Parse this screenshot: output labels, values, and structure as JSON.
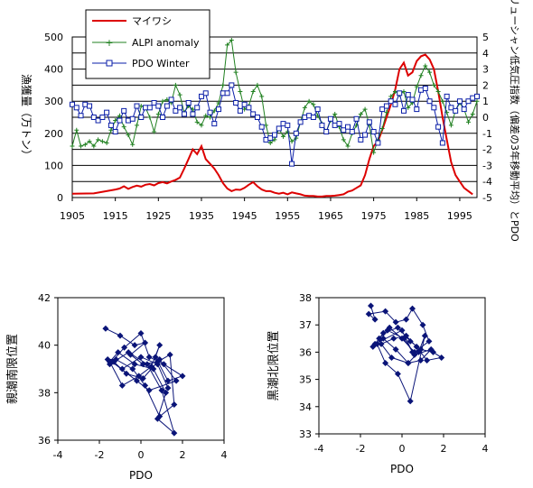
{
  "colors": {
    "sardine": "#dd0000",
    "alpi": "#208020",
    "pdo": "#0a1ea8",
    "scatter": "#0a1478",
    "grid": "#000000"
  },
  "chart_data": [
    {
      "type": "line",
      "legend_position": "top-left",
      "grid": true,
      "xlim": [
        1905,
        1999
      ],
      "xticks": [
        "1905",
        "1915",
        "1925",
        "1935",
        "1945",
        "1955",
        "1965",
        "1975",
        "1985",
        "1995"
      ],
      "ylim": [
        0,
        500
      ],
      "yticks": [
        "0",
        "100",
        "200",
        "300",
        "400",
        "500"
      ],
      "y2lim": [
        -5,
        5
      ],
      "y2ticks": [
        "-5",
        "-4",
        "-3",
        "-2",
        "-1",
        "0",
        "1",
        "2",
        "3",
        "4",
        "5"
      ],
      "ylabel": "漁獲量（万トン）",
      "y2label": "アリューシャン低気圧指数（偏差の3年移動平均）とPDO",
      "series": [
        {
          "name": "マイワシ",
          "axis": "left",
          "x": [
            1905,
            1910,
            1915,
            1916,
            1917,
            1918,
            1919,
            1920,
            1921,
            1922,
            1923,
            1924,
            1925,
            1926,
            1927,
            1928,
            1929,
            1930,
            1931,
            1932,
            1933,
            1934,
            1935,
            1936,
            1937,
            1938,
            1939,
            1940,
            1941,
            1942,
            1943,
            1944,
            1945,
            1946,
            1947,
            1948,
            1949,
            1950,
            1951,
            1952,
            1953,
            1954,
            1955,
            1956,
            1957,
            1958,
            1959,
            1960,
            1961,
            1962,
            1963,
            1964,
            1965,
            1966,
            1967,
            1968,
            1969,
            1970,
            1971,
            1972,
            1973,
            1974,
            1975,
            1976,
            1977,
            1978,
            1979,
            1980,
            1981,
            1982,
            1983,
            1984,
            1985,
            1986,
            1987,
            1988,
            1989,
            1990,
            1991,
            1992,
            1993,
            1994,
            1995,
            1996,
            1997,
            1998
          ],
          "values": [
            12,
            13,
            25,
            28,
            35,
            27,
            33,
            37,
            34,
            40,
            42,
            38,
            45,
            48,
            44,
            50,
            55,
            62,
            90,
            120,
            150,
            135,
            160,
            120,
            105,
            90,
            70,
            45,
            28,
            20,
            25,
            24,
            30,
            40,
            48,
            35,
            25,
            20,
            20,
            15,
            12,
            15,
            10,
            16,
            13,
            10,
            6,
            5,
            5,
            3,
            3,
            5,
            5,
            6,
            8,
            10,
            18,
            22,
            30,
            38,
            70,
            120,
            160,
            175,
            210,
            250,
            290,
            335,
            400,
            420,
            380,
            390,
            425,
            440,
            445,
            430,
            400,
            330,
            250,
            180,
            110,
            70,
            50,
            30,
            20,
            10
          ]
        },
        {
          "name": "ALPI anomaly",
          "axis": "right",
          "x": [
            1905,
            1906,
            1907,
            1908,
            1909,
            1910,
            1911,
            1912,
            1913,
            1914,
            1915,
            1916,
            1917,
            1918,
            1919,
            1920,
            1921,
            1922,
            1923,
            1924,
            1925,
            1926,
            1927,
            1928,
            1929,
            1930,
            1931,
            1932,
            1933,
            1934,
            1935,
            1936,
            1937,
            1938,
            1939,
            1940,
            1941,
            1942,
            1943,
            1944,
            1945,
            1946,
            1947,
            1948,
            1949,
            1950,
            1951,
            1952,
            1953,
            1954,
            1955,
            1956,
            1957,
            1958,
            1959,
            1960,
            1961,
            1962,
            1963,
            1964,
            1965,
            1966,
            1967,
            1968,
            1969,
            1970,
            1971,
            1972,
            1973,
            1974,
            1975,
            1976,
            1977,
            1978,
            1979,
            1980,
            1981,
            1982,
            1983,
            1984,
            1985,
            1986,
            1987,
            1988,
            1989,
            1990,
            1991,
            1992,
            1993,
            1994,
            1995,
            1996,
            1997,
            1998,
            1999
          ],
          "values": [
            -1.8,
            -0.8,
            -1.8,
            -1.7,
            -1.5,
            -1.8,
            -1.4,
            -1.5,
            -1.6,
            -0.8,
            -0.2,
            0.1,
            -0.6,
            -1.1,
            -1.7,
            -0.5,
            0.7,
            0.6,
            0.0,
            -0.9,
            0.2,
            1.0,
            1.1,
            0.9,
            2.0,
            1.4,
            0.3,
            0.7,
            0.5,
            -0.3,
            -0.5,
            0.1,
            0.0,
            0.4,
            0.9,
            2.0,
            4.5,
            4.8,
            2.8,
            1.6,
            0.5,
            0.7,
            1.6,
            2.0,
            1.3,
            -0.5,
            -1.6,
            -1.4,
            -0.7,
            -1.2,
            -0.9,
            -1.5,
            -1.3,
            -0.3,
            0.6,
            1.0,
            0.8,
            0.1,
            -0.4,
            -0.9,
            -0.2,
            0.2,
            -0.6,
            -1.4,
            -1.8,
            -1.0,
            -0.5,
            0.2,
            0.5,
            -0.5,
            -2.2,
            -1.4,
            -0.7,
            0.3,
            1.3,
            1.6,
            1.4,
            1.6,
            0.6,
            0.9,
            1.9,
            2.6,
            3.2,
            2.8,
            2.0,
            1.6,
            1.0,
            0.3,
            -0.5,
            0.4,
            0.9,
            0.5,
            -0.3,
            0.2,
            1.0
          ]
        },
        {
          "name": "PDO Winter",
          "axis": "right",
          "x": [
            1905,
            1906,
            1907,
            1908,
            1909,
            1910,
            1911,
            1912,
            1913,
            1914,
            1915,
            1916,
            1917,
            1918,
            1919,
            1920,
            1921,
            1922,
            1923,
            1924,
            1925,
            1926,
            1927,
            1928,
            1929,
            1930,
            1931,
            1932,
            1933,
            1934,
            1935,
            1936,
            1937,
            1938,
            1939,
            1940,
            1941,
            1942,
            1943,
            1944,
            1945,
            1946,
            1947,
            1948,
            1949,
            1950,
            1951,
            1952,
            1953,
            1954,
            1955,
            1956,
            1957,
            1958,
            1959,
            1960,
            1961,
            1962,
            1963,
            1964,
            1965,
            1966,
            1967,
            1968,
            1969,
            1970,
            1971,
            1972,
            1973,
            1974,
            1975,
            1976,
            1977,
            1978,
            1979,
            1980,
            1981,
            1982,
            1983,
            1984,
            1985,
            1986,
            1987,
            1988,
            1989,
            1990,
            1991,
            1992,
            1993,
            1994,
            1995,
            1996,
            1997,
            1998,
            1999
          ],
          "values": [
            0.8,
            0.6,
            0.1,
            0.8,
            0.7,
            0.0,
            -0.2,
            0.0,
            0.3,
            -0.5,
            -0.9,
            -0.2,
            0.4,
            -0.2,
            -0.1,
            0.7,
            0.0,
            0.6,
            0.6,
            0.9,
            0.7,
            0.0,
            0.7,
            1.1,
            0.4,
            0.6,
            0.2,
            0.9,
            0.2,
            0.6,
            1.3,
            1.5,
            0.3,
            -0.4,
            0.5,
            1.5,
            1.5,
            2.0,
            0.9,
            0.4,
            0.8,
            0.6,
            0.2,
            0.0,
            -0.6,
            -1.4,
            -1.3,
            -1.1,
            -0.7,
            -0.4,
            -0.5,
            -2.9,
            -1.0,
            -0.3,
            0.0,
            0.1,
            0.0,
            0.5,
            -0.5,
            -0.9,
            -0.1,
            -0.5,
            -0.4,
            -0.8,
            -0.6,
            -0.9,
            -0.1,
            -1.4,
            -1.1,
            -0.3,
            -0.9,
            -1.6,
            0.5,
            0.7,
            1.0,
            0.8,
            1.5,
            0.4,
            1.4,
            1.1,
            0.5,
            1.7,
            1.8,
            1.0,
            0.6,
            -0.6,
            -1.6,
            1.3,
            0.6,
            0.4,
            1.0,
            0.5,
            1.0,
            1.2,
            1.3
          ]
        }
      ]
    },
    {
      "type": "scatter",
      "xlabel": "PDO",
      "ylabel": "親潮南限位置",
      "xlim": [
        -4,
        4
      ],
      "ylim": [
        36,
        42
      ],
      "xticks": [
        "-4",
        "-2",
        "0",
        "2",
        "4"
      ],
      "yticks": [
        "36",
        "38",
        "40",
        "42"
      ],
      "connected": true,
      "x": [
        -1.7,
        -1.0,
        -0.3,
        0.2,
        -0.5,
        0.1,
        0.8,
        1.4,
        1.6,
        0.9,
        0.2,
        -0.4,
        -1.2,
        -1.6,
        -1.5,
        -0.8,
        0.0,
        0.4,
        1.1,
        2.0,
        1.3,
        0.7,
        0.9,
        0.5,
        -0.1,
        -0.9,
        -1.5,
        -1.1,
        -0.3,
        0.6,
        1.2,
        0.8,
        1.6,
        1.0,
        0.3,
        -0.6,
        -1.3,
        -0.7,
        0.1,
        0.9,
        1.7,
        0.4,
        -0.2,
        -1.4,
        -0.9,
        0.0,
        0.8,
        1.3
      ],
      "y": [
        40.7,
        40.4,
        40.0,
        40.1,
        39.6,
        39.2,
        39.3,
        39.6,
        37.5,
        37.0,
        38.3,
        39.0,
        39.4,
        39.4,
        39.2,
        39.9,
        40.5,
        39.5,
        39.2,
        38.7,
        38.5,
        39.5,
        40.0,
        39.1,
        38.7,
        38.3,
        39.3,
        39.7,
        39.2,
        39.0,
        38.0,
        36.9,
        36.3,
        38.1,
        39.2,
        39.7,
        39.3,
        38.8,
        38.6,
        39.4,
        38.5,
        38.1,
        38.5,
        39.3,
        39.0,
        39.5,
        39.2,
        38.2
      ]
    },
    {
      "type": "scatter",
      "xlabel": "PDO",
      "ylabel": "黒潮北限位置",
      "xlim": [
        -4,
        4
      ],
      "ylim": [
        33,
        38
      ],
      "xticks": [
        "-4",
        "-2",
        "0",
        "2",
        "4"
      ],
      "yticks": [
        "33",
        "34",
        "35",
        "36",
        "37",
        "38"
      ],
      "connected": true,
      "x": [
        -1.5,
        -1.3,
        -1.6,
        -0.8,
        -0.3,
        0.2,
        0.5,
        1.0,
        1.3,
        0.6,
        0.0,
        -0.6,
        -1.1,
        -1.4,
        -0.9,
        -0.2,
        0.4,
        0.9,
        1.5,
        1.9,
        1.2,
        0.7,
        0.2,
        -0.4,
        -1.0,
        -0.5,
        0.3,
        0.8,
        1.1,
        0.4,
        -0.2,
        -0.8,
        -1.2,
        -0.7,
        0.1,
        0.6,
        1.4,
        0.9,
        0.3,
        -0.3,
        -0.9,
        -1.3,
        0.0,
        0.5
      ],
      "y": [
        37.7,
        37.2,
        37.4,
        37.5,
        37.1,
        37.2,
        37.6,
        37.0,
        36.4,
        36.0,
        36.5,
        36.9,
        36.5,
        36.2,
        36.7,
        36.9,
        36.4,
        36.1,
        36.0,
        35.8,
        35.7,
        36.2,
        36.6,
        36.5,
        36.3,
        35.8,
        35.6,
        36.0,
        36.6,
        34.2,
        35.2,
        35.6,
        36.3,
        36.8,
        36.5,
        35.9,
        36.1,
        35.7,
        35.6,
        36.1,
        36.5,
        36.3,
        36.8,
        36.0
      ]
    }
  ]
}
